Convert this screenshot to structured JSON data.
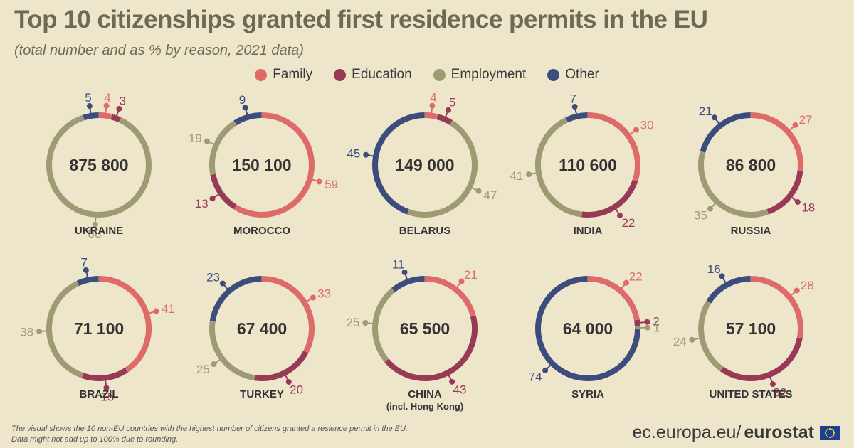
{
  "title": "Top 10 citizenships granted first residence permits in the EU",
  "subtitle": "(total number and as % by reason, 2021 data)",
  "legend": [
    {
      "label": "Family",
      "color": "#de6a6a"
    },
    {
      "label": "Education",
      "color": "#983a56"
    },
    {
      "label": "Employment",
      "color": "#9e9b74"
    },
    {
      "label": "Other",
      "color": "#3c4d7d"
    }
  ],
  "chart_data": {
    "type": "pie",
    "variant": "donut-small-multiples",
    "unit": "%",
    "categories": [
      "Family",
      "Education",
      "Employment",
      "Other"
    ],
    "countries": [
      {
        "name": "UKRAINE",
        "sub": "",
        "total": "875 800",
        "values": [
          4,
          3,
          88,
          5
        ]
      },
      {
        "name": "MOROCCO",
        "sub": "",
        "total": "150 100",
        "values": [
          59,
          13,
          19,
          9
        ]
      },
      {
        "name": "BELARUS",
        "sub": "",
        "total": "149 000",
        "values": [
          4,
          5,
          47,
          45
        ]
      },
      {
        "name": "INDIA",
        "sub": "",
        "total": "110 600",
        "values": [
          30,
          22,
          41,
          7
        ]
      },
      {
        "name": "RUSSIA",
        "sub": "",
        "total": "86 800",
        "values": [
          27,
          18,
          35,
          21
        ]
      },
      {
        "name": "BRAZIL",
        "sub": "",
        "total": "71 100",
        "values": [
          41,
          15,
          38,
          7
        ]
      },
      {
        "name": "TURKEY",
        "sub": "",
        "total": "67 400",
        "values": [
          33,
          20,
          25,
          23
        ]
      },
      {
        "name": "CHINA",
        "sub": "(incl. Hong Kong)",
        "total": "65 500",
        "values": [
          21,
          43,
          25,
          11
        ]
      },
      {
        "name": "SYRIA",
        "sub": "",
        "total": "64 000",
        "values": [
          22,
          2,
          1,
          74
        ]
      },
      {
        "name": "UNITED STATES",
        "sub": "",
        "total": "57 100",
        "values": [
          28,
          32,
          24,
          16
        ]
      }
    ]
  },
  "footnote": {
    "line1": "The visual shows the 10 non-EU countries with the highest number of citizens granted a resience permit in the EU.",
    "line2": "Data might not add up to 100% due to rounding."
  },
  "source": {
    "prefix": "ec.europa.eu/",
    "brand": "eurostat"
  }
}
